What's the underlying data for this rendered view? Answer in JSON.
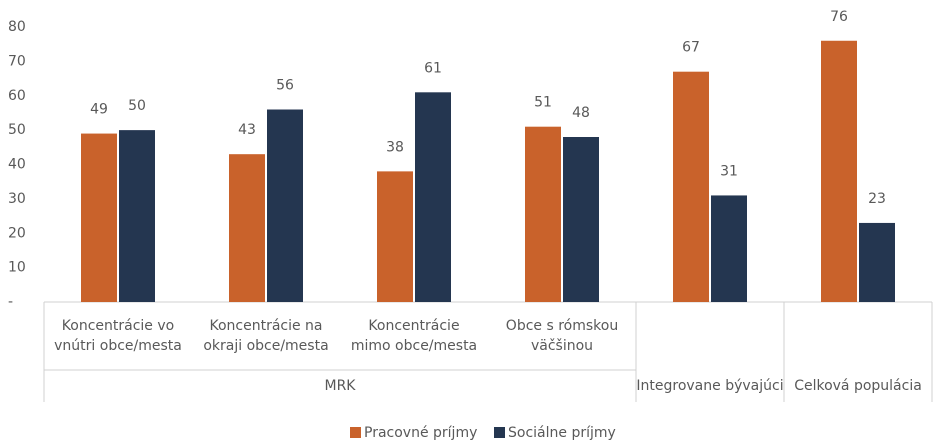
{
  "chart_data": {
    "type": "bar",
    "categories": [
      "Koncentrácie vo vnútri obce/mesta",
      "Koncentrácie na okraji obce/mesta",
      "Koncentrácie mimo obce/mesta",
      "Obce s rómskou väčšinou",
      null,
      null
    ],
    "group_labels": [
      "MRK",
      "MRK",
      "MRK",
      "MRK",
      "Integrovane bývajúci",
      "Celková populácia"
    ],
    "series": [
      {
        "name": "Pracovné príjmy",
        "color": "#c9622b",
        "values": [
          49,
          43,
          38,
          51,
          67,
          76
        ]
      },
      {
        "name": "Sociálne príjmy",
        "color": "#243650",
        "values": [
          50,
          56,
          61,
          48,
          31,
          23
        ]
      }
    ],
    "ylim": [
      0,
      80
    ],
    "yticks": [
      {
        "value": 0,
        "label": "-"
      },
      10,
      20,
      30,
      40,
      50,
      60,
      70,
      80
    ],
    "legend": "bottom"
  }
}
